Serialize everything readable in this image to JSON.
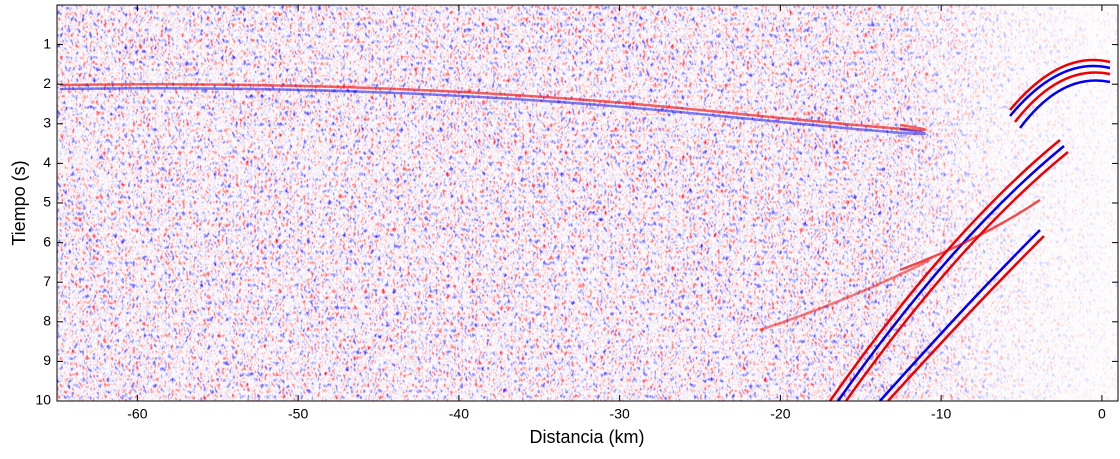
{
  "chart_data": {
    "type": "image",
    "x_label": "Distancia (km)",
    "y_label": "Tiempo (s)",
    "xlim": [
      -65,
      1
    ],
    "xticks": [
      -60,
      -50,
      -40,
      -30,
      -20,
      -10,
      0
    ],
    "ylim": [
      0,
      10
    ],
    "yticks": [
      1,
      2,
      3,
      4,
      5,
      6,
      7,
      8,
      9,
      10
    ],
    "y_inverted": true
  }
}
